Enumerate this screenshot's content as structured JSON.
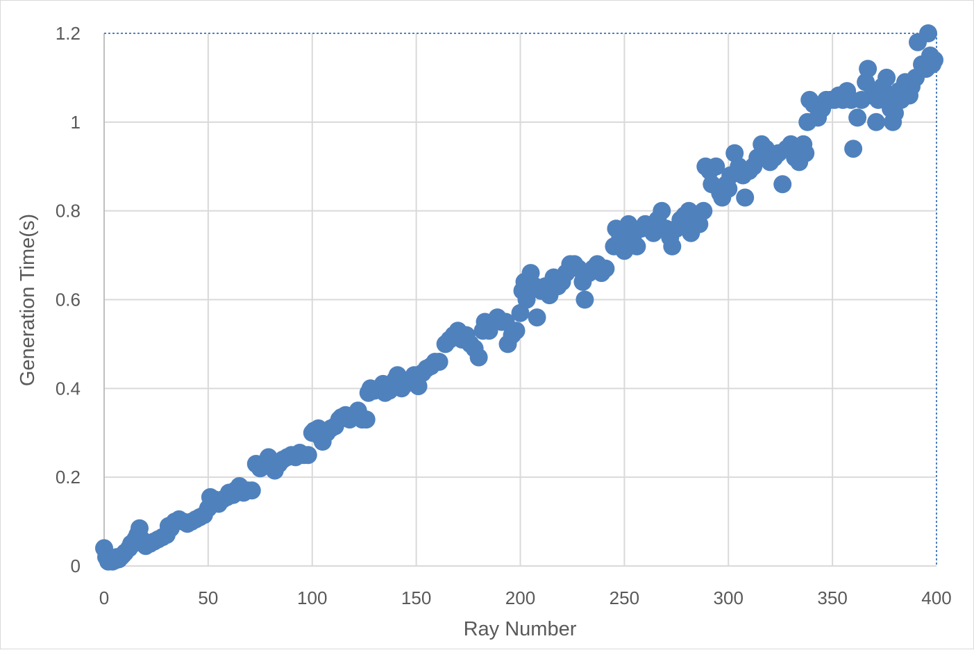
{
  "chart_data": {
    "type": "scatter",
    "title": "",
    "xlabel": "Ray Number",
    "ylabel": "Generation Time(s)",
    "xlim": [
      0,
      400
    ],
    "ylim": [
      0,
      1.2
    ],
    "x_ticks": [
      "0",
      "50",
      "100",
      "150",
      "200",
      "250",
      "300",
      "350",
      "400"
    ],
    "y_ticks": [
      "0",
      "0.2",
      "0.4",
      "0.6",
      "0.8",
      "1",
      "1.2"
    ],
    "grid": true,
    "legend": "none",
    "marker_color": "#4f81bd",
    "series": [
      {
        "points": [
          [
            0,
            0.04
          ],
          [
            1,
            0.02
          ],
          [
            2,
            0.01
          ],
          [
            3,
            0.015
          ],
          [
            4,
            0.01
          ],
          [
            5,
            0.012
          ],
          [
            6,
            0.02
          ],
          [
            7,
            0.015
          ],
          [
            8,
            0.02
          ],
          [
            9,
            0.025
          ],
          [
            10,
            0.03
          ],
          [
            12,
            0.04
          ],
          [
            13,
            0.05
          ],
          [
            14,
            0.05
          ],
          [
            15,
            0.06
          ],
          [
            16,
            0.07
          ],
          [
            17,
            0.085
          ],
          [
            18,
            0.06
          ],
          [
            19,
            0.05
          ],
          [
            20,
            0.045
          ],
          [
            22,
            0.05
          ],
          [
            24,
            0.055
          ],
          [
            26,
            0.06
          ],
          [
            28,
            0.065
          ],
          [
            30,
            0.07
          ],
          [
            31,
            0.09
          ],
          [
            32,
            0.085
          ],
          [
            34,
            0.1
          ],
          [
            36,
            0.105
          ],
          [
            38,
            0.1
          ],
          [
            40,
            0.095
          ],
          [
            42,
            0.1
          ],
          [
            44,
            0.105
          ],
          [
            46,
            0.11
          ],
          [
            48,
            0.115
          ],
          [
            50,
            0.13
          ],
          [
            51,
            0.155
          ],
          [
            53,
            0.15
          ],
          [
            55,
            0.14
          ],
          [
            57,
            0.15
          ],
          [
            59,
            0.155
          ],
          [
            60,
            0.165
          ],
          [
            62,
            0.16
          ],
          [
            63,
            0.17
          ],
          [
            65,
            0.18
          ],
          [
            67,
            0.165
          ],
          [
            69,
            0.17
          ],
          [
            71,
            0.17
          ],
          [
            73,
            0.23
          ],
          [
            75,
            0.22
          ],
          [
            77,
            0.23
          ],
          [
            79,
            0.245
          ],
          [
            80,
            0.225
          ],
          [
            82,
            0.215
          ],
          [
            84,
            0.23
          ],
          [
            86,
            0.24
          ],
          [
            88,
            0.245
          ],
          [
            90,
            0.25
          ],
          [
            92,
            0.245
          ],
          [
            94,
            0.255
          ],
          [
            96,
            0.25
          ],
          [
            98,
            0.25
          ],
          [
            100,
            0.3
          ],
          [
            101,
            0.305
          ],
          [
            103,
            0.31
          ],
          [
            104,
            0.29
          ],
          [
            105,
            0.28
          ],
          [
            107,
            0.3
          ],
          [
            109,
            0.31
          ],
          [
            111,
            0.315
          ],
          [
            113,
            0.33
          ],
          [
            114,
            0.335
          ],
          [
            116,
            0.34
          ],
          [
            118,
            0.33
          ],
          [
            120,
            0.34
          ],
          [
            122,
            0.35
          ],
          [
            124,
            0.33
          ],
          [
            126,
            0.33
          ],
          [
            127,
            0.39
          ],
          [
            128,
            0.4
          ],
          [
            130,
            0.395
          ],
          [
            132,
            0.4
          ],
          [
            134,
            0.41
          ],
          [
            135,
            0.39
          ],
          [
            137,
            0.395
          ],
          [
            139,
            0.41
          ],
          [
            140,
            0.42
          ],
          [
            141,
            0.43
          ],
          [
            143,
            0.4
          ],
          [
            145,
            0.41
          ],
          [
            147,
            0.42
          ],
          [
            149,
            0.43
          ],
          [
            150,
            0.41
          ],
          [
            151,
            0.405
          ],
          [
            153,
            0.435
          ],
          [
            155,
            0.445
          ],
          [
            157,
            0.45
          ],
          [
            159,
            0.46
          ],
          [
            161,
            0.46
          ],
          [
            164,
            0.5
          ],
          [
            166,
            0.51
          ],
          [
            168,
            0.52
          ],
          [
            170,
            0.53
          ],
          [
            172,
            0.51
          ],
          [
            174,
            0.52
          ],
          [
            176,
            0.5
          ],
          [
            178,
            0.49
          ],
          [
            180,
            0.47
          ],
          [
            182,
            0.53
          ],
          [
            183,
            0.55
          ],
          [
            185,
            0.53
          ],
          [
            187,
            0.55
          ],
          [
            189,
            0.56
          ],
          [
            191,
            0.55
          ],
          [
            193,
            0.55
          ],
          [
            194,
            0.5
          ],
          [
            196,
            0.52
          ],
          [
            198,
            0.53
          ],
          [
            200,
            0.57
          ],
          [
            201,
            0.62
          ],
          [
            202,
            0.64
          ],
          [
            203,
            0.6
          ],
          [
            204,
            0.62
          ],
          [
            205,
            0.66
          ],
          [
            207,
            0.63
          ],
          [
            208,
            0.56
          ],
          [
            210,
            0.62
          ],
          [
            212,
            0.63
          ],
          [
            214,
            0.61
          ],
          [
            216,
            0.65
          ],
          [
            218,
            0.63
          ],
          [
            220,
            0.64
          ],
          [
            222,
            0.66
          ],
          [
            224,
            0.68
          ],
          [
            226,
            0.68
          ],
          [
            228,
            0.67
          ],
          [
            230,
            0.64
          ],
          [
            231,
            0.6
          ],
          [
            233,
            0.66
          ],
          [
            235,
            0.67
          ],
          [
            237,
            0.68
          ],
          [
            239,
            0.66
          ],
          [
            241,
            0.67
          ],
          [
            245,
            0.72
          ],
          [
            246,
            0.76
          ],
          [
            248,
            0.74
          ],
          [
            250,
            0.71
          ],
          [
            251,
            0.75
          ],
          [
            252,
            0.77
          ],
          [
            254,
            0.74
          ],
          [
            256,
            0.72
          ],
          [
            258,
            0.76
          ],
          [
            260,
            0.77
          ],
          [
            262,
            0.76
          ],
          [
            264,
            0.75
          ],
          [
            266,
            0.78
          ],
          [
            268,
            0.8
          ],
          [
            270,
            0.76
          ],
          [
            272,
            0.74
          ],
          [
            273,
            0.72
          ],
          [
            275,
            0.76
          ],
          [
            277,
            0.78
          ],
          [
            279,
            0.79
          ],
          [
            281,
            0.8
          ],
          [
            282,
            0.75
          ],
          [
            284,
            0.78
          ],
          [
            286,
            0.77
          ],
          [
            288,
            0.8
          ],
          [
            289,
            0.9
          ],
          [
            291,
            0.89
          ],
          [
            292,
            0.86
          ],
          [
            294,
            0.9
          ],
          [
            296,
            0.84
          ],
          [
            297,
            0.83
          ],
          [
            299,
            0.86
          ],
          [
            300,
            0.85
          ],
          [
            301,
            0.88
          ],
          [
            303,
            0.93
          ],
          [
            305,
            0.9
          ],
          [
            307,
            0.88
          ],
          [
            308,
            0.83
          ],
          [
            310,
            0.89
          ],
          [
            312,
            0.9
          ],
          [
            314,
            0.92
          ],
          [
            316,
            0.95
          ],
          [
            318,
            0.94
          ],
          [
            320,
            0.91
          ],
          [
            322,
            0.92
          ],
          [
            324,
            0.93
          ],
          [
            326,
            0.86
          ],
          [
            328,
            0.94
          ],
          [
            330,
            0.95
          ],
          [
            332,
            0.92
          ],
          [
            334,
            0.91
          ],
          [
            336,
            0.95
          ],
          [
            337,
            0.93
          ],
          [
            338,
            1.0
          ],
          [
            339,
            1.05
          ],
          [
            341,
            1.04
          ],
          [
            343,
            1.01
          ],
          [
            345,
            1.03
          ],
          [
            347,
            1.05
          ],
          [
            349,
            1.05
          ],
          [
            351,
            1.05
          ],
          [
            353,
            1.06
          ],
          [
            355,
            1.05
          ],
          [
            357,
            1.07
          ],
          [
            359,
            1.05
          ],
          [
            360,
            0.94
          ],
          [
            362,
            1.01
          ],
          [
            364,
            1.05
          ],
          [
            366,
            1.09
          ],
          [
            367,
            1.12
          ],
          [
            369,
            1.06
          ],
          [
            371,
            1.0
          ],
          [
            372,
            1.05
          ],
          [
            374,
            1.08
          ],
          [
            376,
            1.1
          ],
          [
            377,
            1.06
          ],
          [
            378,
            1.03
          ],
          [
            379,
            1.0
          ],
          [
            380,
            1.02
          ],
          [
            382,
            1.07
          ],
          [
            383,
            1.05
          ],
          [
            385,
            1.09
          ],
          [
            387,
            1.06
          ],
          [
            388,
            1.08
          ],
          [
            390,
            1.1
          ],
          [
            391,
            1.18
          ],
          [
            393,
            1.13
          ],
          [
            395,
            1.12
          ],
          [
            396,
            1.2
          ],
          [
            397,
            1.15
          ],
          [
            398,
            1.13
          ],
          [
            399,
            1.14
          ]
        ]
      }
    ]
  }
}
